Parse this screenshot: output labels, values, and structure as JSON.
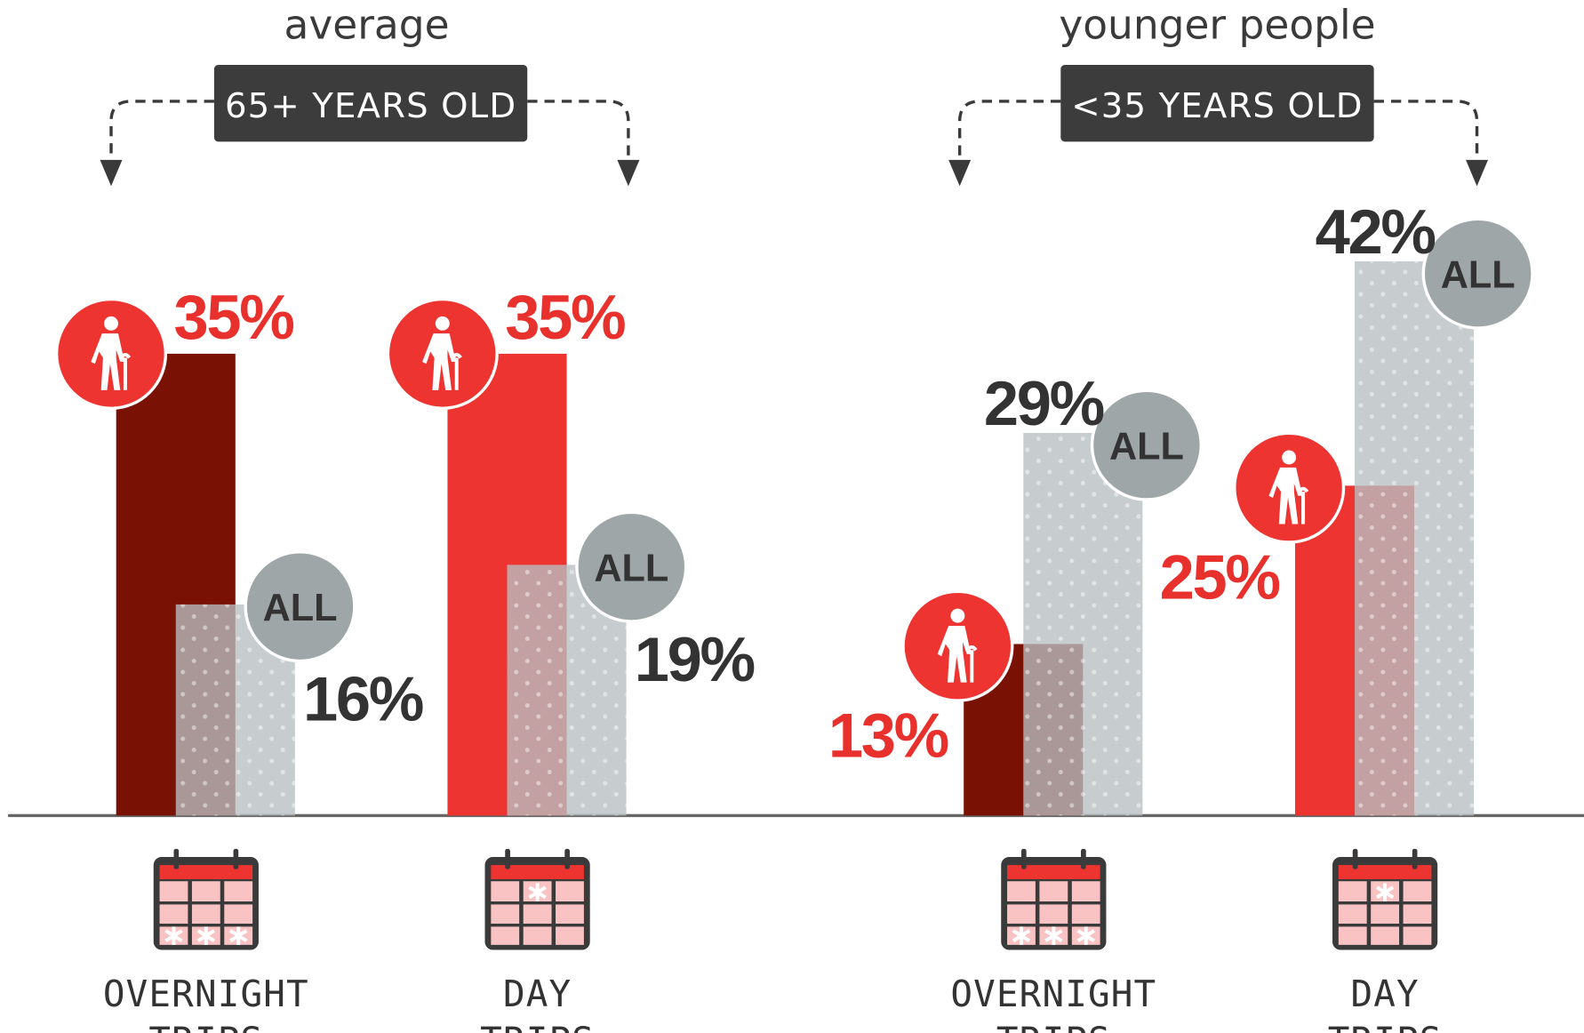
{
  "chart_data": [
    {
      "type": "bar",
      "title": "average",
      "group_label": "65+ YEARS OLD",
      "categories": [
        "OVERNIGHT TRIPS",
        "DAY TRIPS"
      ],
      "series": [
        {
          "name": "65+ YEARS OLD",
          "colors": [
            "#7a1105",
            "#ee3431"
          ],
          "values": [
            35,
            35
          ],
          "value_labels": [
            "35%",
            "35%"
          ]
        },
        {
          "name": "ALL",
          "color": "#b7bfc2",
          "values": [
            16,
            19
          ],
          "value_labels": [
            "16%",
            "19%"
          ]
        }
      ]
    },
    {
      "type": "bar",
      "title": "younger people",
      "group_label": "<35 YEARS OLD",
      "categories": [
        "OVERNIGHT TRIPS",
        "DAY TRIPS"
      ],
      "series": [
        {
          "name": "<35 YEARS OLD",
          "colors": [
            "#7a1105",
            "#ee3431"
          ],
          "values": [
            13,
            25
          ],
          "value_labels": [
            "13%",
            "25%"
          ]
        },
        {
          "name": "ALL",
          "color": "#b7bfc2",
          "values": [
            29,
            42
          ],
          "value_labels": [
            "29%",
            "42%"
          ]
        }
      ]
    }
  ]
}
